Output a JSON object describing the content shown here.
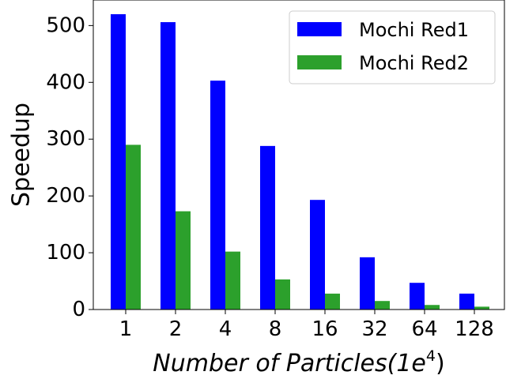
{
  "chart_data": {
    "type": "bar",
    "title": "",
    "xlabel": "Number of Particles(1e",
    "xlabel_superscript": "4",
    "xlabel_suffix": ")",
    "ylabel": "Speedup",
    "categories": [
      "1",
      "2",
      "4",
      "8",
      "16",
      "32",
      "64",
      "128"
    ],
    "series": [
      {
        "name": "Mochi Red1",
        "color": "#0000ff",
        "values": [
          520,
          506,
          403,
          288,
          193,
          92,
          47,
          28
        ]
      },
      {
        "name": "Mochi Red2",
        "color": "#2ca02c",
        "values": [
          290,
          173,
          102,
          53,
          28,
          15,
          8,
          5
        ]
      }
    ],
    "ylim": [
      0,
      545
    ],
    "yticks": [
      0,
      100,
      200,
      300,
      400,
      500
    ],
    "grid": false,
    "legend_position": "top-right"
  }
}
